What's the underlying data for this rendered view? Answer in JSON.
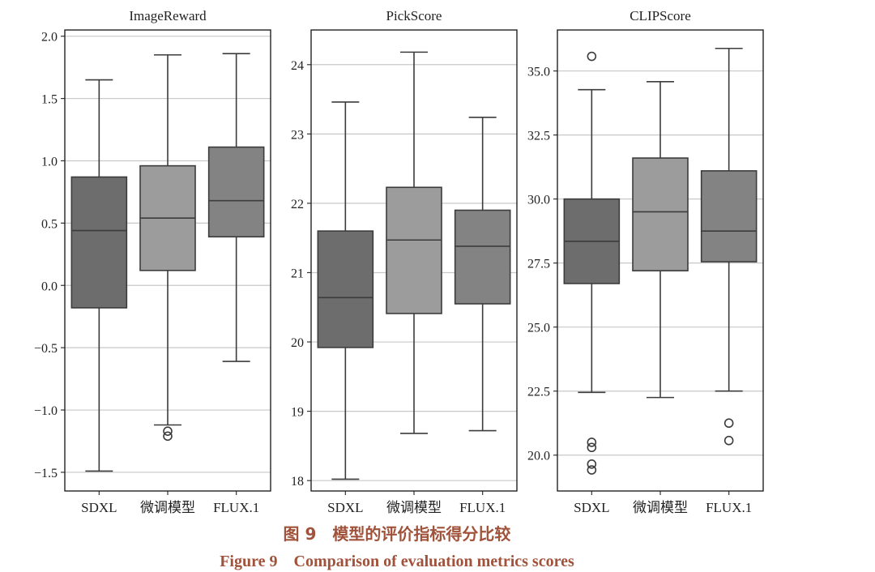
{
  "caption": {
    "chinese": "图 9　模型的评价指标得分比较",
    "english": "Figure 9　Comparison of evaluation metrics scores"
  },
  "colors": {
    "box_dark": "#6d6d6d",
    "box_light": "#9c9c9c",
    "box_mid": "#838383",
    "grid": "#c8c8c8",
    "caption": "#a0523a"
  },
  "chart_data": [
    {
      "type": "box",
      "title": "ImageReward",
      "categories": [
        "SDXL",
        "微调模型",
        "FLUX.1"
      ],
      "ylim": [
        -1.65,
        2.05
      ],
      "yticks": [
        -1.5,
        -1.0,
        -0.5,
        0.0,
        0.5,
        1.0,
        1.5,
        2.0
      ],
      "ytick_labels": [
        "−1.5",
        "−1.0",
        "−0.5",
        "0.0",
        "0.5",
        "1.0",
        "1.5",
        "2.0"
      ],
      "boxes": [
        {
          "min": -1.49,
          "q1": -0.18,
          "median": 0.44,
          "q3": 0.87,
          "max": 1.65,
          "outliers": []
        },
        {
          "min": -1.12,
          "q1": 0.12,
          "median": 0.54,
          "q3": 0.96,
          "max": 1.85,
          "outliers": [
            -1.17,
            -1.21
          ]
        },
        {
          "min": -0.61,
          "q1": 0.39,
          "median": 0.68,
          "q3": 1.11,
          "max": 1.86,
          "outliers": []
        }
      ]
    },
    {
      "type": "box",
      "title": "PickScore",
      "categories": [
        "SDXL",
        "微调模型",
        "FLUX.1"
      ],
      "ylim": [
        17.85,
        24.5
      ],
      "yticks": [
        18,
        19,
        20,
        21,
        22,
        23,
        24
      ],
      "ytick_labels": [
        "18",
        "19",
        "20",
        "21",
        "22",
        "23",
        "24"
      ],
      "boxes": [
        {
          "min": 18.02,
          "q1": 19.92,
          "median": 20.64,
          "q3": 21.6,
          "max": 23.46,
          "outliers": []
        },
        {
          "min": 18.68,
          "q1": 20.41,
          "median": 21.47,
          "q3": 22.23,
          "max": 24.18,
          "outliers": []
        },
        {
          "min": 18.72,
          "q1": 20.55,
          "median": 21.38,
          "q3": 21.9,
          "max": 23.24,
          "outliers": []
        }
      ]
    },
    {
      "type": "box",
      "title": "CLIPScore",
      "categories": [
        "SDXL",
        "微调模型",
        "FLUX.1"
      ],
      "ylim": [
        18.6,
        36.6
      ],
      "yticks": [
        20.0,
        22.5,
        25.0,
        27.5,
        30.0,
        32.5,
        35.0
      ],
      "ytick_labels": [
        "20.0",
        "22.5",
        "25.0",
        "27.5",
        "30.0",
        "32.5",
        "35.0"
      ],
      "boxes": [
        {
          "min": 22.45,
          "q1": 26.7,
          "median": 28.35,
          "q3": 30.0,
          "max": 34.27,
          "outliers": [
            35.57,
            20.5,
            20.3,
            19.65,
            19.42
          ]
        },
        {
          "min": 22.25,
          "q1": 27.2,
          "median": 29.5,
          "q3": 31.6,
          "max": 34.58,
          "outliers": []
        },
        {
          "min": 22.5,
          "q1": 27.55,
          "median": 28.75,
          "q3": 31.1,
          "max": 35.88,
          "outliers": [
            21.25,
            20.57
          ]
        }
      ]
    }
  ]
}
